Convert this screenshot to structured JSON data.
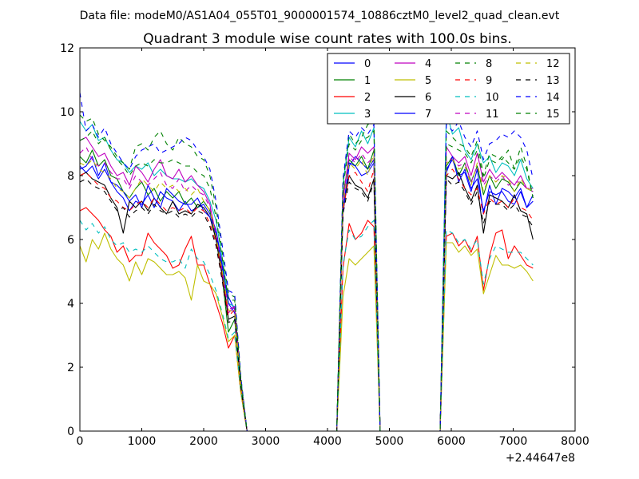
{
  "chart_data": {
    "type": "line",
    "suptitle": "Data file: modeM0/AS1A04_055T01_9000001574_10886cztM0_level2_quad_clean.evt",
    "title": "Quadrant 3 module wise count rates with 100.0s bins.",
    "xlabel": "",
    "ylabel": "",
    "x_offset_label": "+2.44647e8",
    "xlim": [
      0,
      8000
    ],
    "ylim": [
      0,
      12
    ],
    "xticks": [
      0,
      1000,
      2000,
      3000,
      4000,
      5000,
      6000,
      7000,
      8000
    ],
    "yticks": [
      0,
      2,
      4,
      6,
      8,
      10,
      12
    ],
    "legend_position": "top-right",
    "legend_columns": 4,
    "segments": [
      {
        "x": [
          0,
          100,
          200,
          300,
          400,
          500,
          600,
          700,
          800,
          900,
          1000,
          1100,
          1200,
          1300,
          1400,
          1500,
          1600,
          1700,
          1800,
          1900,
          2000,
          2100,
          2200,
          2300,
          2400,
          2500,
          2600,
          2700
        ]
      },
      {
        "x": [
          4150,
          4250,
          4350,
          4450,
          4550,
          4650,
          4750,
          4850,
          4950
        ]
      },
      {
        "x": [
          5820,
          5920,
          6020,
          6120,
          6220,
          6320,
          6420,
          6520,
          6620,
          6720,
          6820,
          6920,
          7020,
          7120,
          7220,
          7320
        ]
      }
    ],
    "zero_gaps": [
      [
        2720,
        4150
      ],
      [
        4950,
        5820
      ]
    ],
    "series": [
      {
        "name": "0",
        "color": "#0000ff",
        "dash": false,
        "values": [
          [
            8.3,
            8.1,
            8.3,
            7.9,
            8.2,
            7.8,
            7.5,
            7.3,
            6.9,
            7.2,
            7.1,
            7.4,
            7.0,
            7.5,
            7.3,
            7.2,
            6.9,
            7.2,
            6.9,
            7.0,
            7.1,
            6.8,
            6.3,
            5.2,
            4.2,
            3.8,
            1.6,
            0
          ],
          [
            0,
            6.8,
            8.3,
            8.6,
            8.4,
            8.2,
            8.5,
            0,
            0
          ],
          [
            0,
            8.2,
            8.5,
            8.0,
            8.1,
            7.5,
            8.2,
            6.8,
            7.7,
            7.1,
            7.6,
            7.5,
            7.3,
            7.6,
            7.0,
            7.4
          ]
        ]
      },
      {
        "name": "1",
        "color": "#008000",
        "dash": false,
        "values": [
          [
            8.6,
            8.4,
            8.8,
            8.3,
            8.5,
            8.0,
            7.9,
            7.5,
            7.3,
            7.6,
            7.8,
            7.4,
            7.6,
            7.2,
            7.5,
            7.3,
            7.5,
            7.1,
            7.3,
            7.0,
            7.2,
            6.9,
            6.0,
            4.8,
            3.1,
            3.5,
            1.4,
            0
          ],
          [
            0,
            7.4,
            8.5,
            8.3,
            8.6,
            8.2,
            8.8,
            0,
            0
          ],
          [
            0,
            8.3,
            8.6,
            8.0,
            8.4,
            7.8,
            8.3,
            7.4,
            8.0,
            7.6,
            7.9,
            7.8,
            7.5,
            7.8,
            7.6,
            7.5
          ]
        ]
      },
      {
        "name": "2",
        "color": "#ff0000",
        "dash": false,
        "values": [
          [
            6.9,
            7.0,
            6.8,
            6.6,
            6.3,
            6.1,
            5.6,
            5.8,
            5.3,
            5.5,
            5.5,
            6.2,
            5.9,
            5.7,
            5.5,
            5.1,
            5.2,
            5.7,
            6.1,
            5.2,
            5.2,
            4.6,
            4.0,
            3.4,
            2.6,
            3.0,
            1.2,
            0
          ],
          [
            0,
            5.1,
            6.5,
            6.0,
            6.2,
            6.6,
            6.4,
            0,
            0
          ],
          [
            0,
            6.1,
            6.2,
            5.8,
            6.0,
            5.6,
            6.1,
            4.4,
            5.5,
            6.2,
            6.3,
            5.4,
            5.8,
            5.5,
            5.2,
            5.1
          ]
        ]
      },
      {
        "name": "3",
        "color": "#00bfbf",
        "dash": false,
        "values": [
          [
            9.7,
            9.4,
            9.6,
            9.1,
            9.2,
            8.8,
            8.5,
            8.4,
            8.1,
            8.3,
            8.2,
            8.4,
            8.0,
            8.2,
            8.0,
            7.9,
            7.9,
            7.8,
            7.9,
            7.7,
            7.6,
            7.2,
            6.6,
            5.4,
            4.0,
            3.9,
            1.6,
            0
          ],
          [
            0,
            7.7,
            9.2,
            8.9,
            9.4,
            9.0,
            9.5,
            0,
            0
          ],
          [
            0,
            10.0,
            9.3,
            9.5,
            8.8,
            8.5,
            9.0,
            8.4,
            8.6,
            8.1,
            8.4,
            8.3,
            8.0,
            8.5,
            7.9,
            7.6
          ]
        ]
      },
      {
        "name": "4",
        "color": "#bf00bf",
        "dash": false,
        "values": [
          [
            9.1,
            9.2,
            8.9,
            8.6,
            8.7,
            8.3,
            8.0,
            8.1,
            7.7,
            8.3,
            8.1,
            7.8,
            8.2,
            8.5,
            8.0,
            7.9,
            8.2,
            7.8,
            8.0,
            7.7,
            7.5,
            7.1,
            6.1,
            4.8,
            3.7,
            3.9,
            1.5,
            0
          ],
          [
            0,
            7.2,
            8.7,
            8.5,
            8.9,
            8.7,
            8.9,
            0,
            0
          ],
          [
            0,
            8.9,
            8.6,
            8.4,
            8.6,
            8.0,
            8.7,
            7.8,
            8.2,
            7.9,
            8.1,
            7.9,
            7.7,
            8.0,
            7.6,
            7.6
          ]
        ]
      },
      {
        "name": "5",
        "color": "#bfbf00",
        "dash": false,
        "values": [
          [
            5.8,
            5.3,
            6.0,
            5.7,
            6.2,
            5.7,
            5.4,
            5.2,
            4.7,
            5.3,
            4.9,
            5.4,
            5.3,
            5.1,
            4.9,
            4.9,
            5.0,
            4.8,
            4.1,
            5.2,
            4.7,
            4.6,
            4.3,
            3.6,
            2.8,
            3.0,
            1.2,
            0
          ],
          [
            0,
            4.2,
            5.4,
            5.2,
            5.4,
            5.6,
            5.8,
            0,
            0
          ],
          [
            0,
            5.9,
            5.9,
            5.6,
            5.8,
            5.5,
            5.7,
            4.3,
            4.9,
            5.5,
            5.2,
            5.2,
            5.1,
            5.2,
            5.0,
            4.7
          ]
        ]
      },
      {
        "name": "6",
        "color": "#000000",
        "dash": false,
        "values": [
          [
            8.0,
            8.1,
            7.9,
            7.8,
            7.7,
            7.3,
            7.0,
            6.2,
            7.2,
            7.0,
            7.2,
            6.9,
            7.3,
            7.0,
            6.8,
            7.2,
            6.8,
            6.9,
            6.8,
            7.1,
            7.0,
            6.7,
            6.0,
            4.9,
            3.5,
            3.6,
            1.4,
            0
          ],
          [
            0,
            7.0,
            8.0,
            7.7,
            7.6,
            7.3,
            7.9,
            0,
            0
          ],
          [
            0,
            8.0,
            7.9,
            8.1,
            7.6,
            7.2,
            7.7,
            6.2,
            7.4,
            7.3,
            7.2,
            7.0,
            7.4,
            6.9,
            6.8,
            6.0
          ]
        ]
      },
      {
        "name": "7",
        "color": "#0000ff",
        "dash": false,
        "values": [
          [
            8.2,
            8.3,
            8.6,
            8.0,
            8.4,
            7.8,
            7.7,
            7.5,
            7.2,
            7.4,
            7.0,
            7.7,
            7.3,
            7.0,
            7.6,
            7.4,
            7.2,
            7.1,
            7.1,
            7.3,
            6.9,
            6.7,
            6.2,
            5.1,
            4.0,
            3.7,
            1.5,
            0
          ],
          [
            0,
            6.9,
            8.4,
            8.3,
            8.0,
            8.1,
            8.4,
            0,
            0
          ],
          [
            0,
            8.1,
            8.6,
            7.8,
            8.2,
            7.6,
            7.9,
            6.9,
            7.5,
            7.4,
            7.5,
            7.2,
            7.1,
            7.5,
            7.0,
            7.2
          ]
        ]
      },
      {
        "name": "8",
        "color": "#008000",
        "dash": true,
        "values": [
          [
            9.9,
            9.7,
            9.8,
            9.3,
            9.1,
            8.9,
            8.6,
            8.4,
            8.2,
            8.9,
            9.0,
            8.8,
            9.2,
            9.4,
            9.0,
            8.8,
            9.2,
            9.0,
            8.9,
            8.6,
            8.5,
            8.0,
            7.0,
            5.6,
            4.3,
            4.2,
            1.7,
            0
          ],
          [
            0,
            7.8,
            9.3,
            9.0,
            9.2,
            9.6,
            9.7,
            0,
            0
          ],
          [
            0,
            9.4,
            9.2,
            9.0,
            8.9,
            8.6,
            9.1,
            8.0,
            8.7,
            8.6,
            8.5,
            8.8,
            8.2,
            8.9,
            8.3,
            7.3
          ]
        ]
      },
      {
        "name": "9",
        "color": "#ff0000",
        "dash": true,
        "values": [
          [
            8.0,
            8.1,
            7.9,
            7.7,
            7.6,
            7.3,
            7.2,
            7.0,
            6.9,
            7.1,
            7.2,
            7.0,
            7.3,
            7.1,
            6.9,
            7.0,
            6.9,
            7.0,
            6.8,
            7.0,
            6.9,
            6.5,
            5.9,
            4.8,
            3.6,
            3.8,
            1.4,
            0
          ],
          [
            0,
            6.9,
            8.0,
            8.1,
            7.8,
            7.5,
            8.2,
            0,
            0
          ],
          [
            0,
            8.0,
            8.2,
            7.9,
            7.6,
            7.4,
            7.6,
            6.8,
            7.3,
            7.1,
            7.2,
            7.0,
            7.3,
            7.0,
            6.9,
            6.6
          ]
        ]
      },
      {
        "name": "10",
        "color": "#00bfbf",
        "dash": true,
        "values": [
          [
            6.6,
            6.3,
            6.5,
            6.2,
            6.4,
            6.0,
            5.8,
            5.9,
            5.6,
            5.7,
            5.6,
            5.8,
            5.6,
            5.4,
            5.3,
            5.3,
            5.4,
            5.1,
            5.7,
            5.4,
            5.3,
            4.9,
            4.4,
            3.7,
            2.9,
            3.1,
            1.3,
            0
          ],
          [
            0,
            5.2,
            6.3,
            6.0,
            6.1,
            6.4,
            6.6,
            0,
            0
          ],
          [
            0,
            6.3,
            6.2,
            5.9,
            6.0,
            5.7,
            6.0,
            4.6,
            5.4,
            5.8,
            5.7,
            5.6,
            5.6,
            5.6,
            5.4,
            5.2
          ]
        ]
      },
      {
        "name": "11",
        "color": "#bf00bf",
        "dash": true,
        "values": [
          [
            8.7,
            8.9,
            8.5,
            8.3,
            8.4,
            8.1,
            7.9,
            7.9,
            7.6,
            8.0,
            7.8,
            7.7,
            7.9,
            8.1,
            7.7,
            7.6,
            7.9,
            7.5,
            7.7,
            7.5,
            7.4,
            7.0,
            6.2,
            5.0,
            3.8,
            3.9,
            1.5,
            0
          ],
          [
            0,
            7.3,
            8.6,
            8.4,
            8.7,
            8.4,
            8.6,
            0,
            0
          ],
          [
            0,
            8.6,
            8.5,
            8.3,
            8.4,
            7.8,
            8.3,
            7.7,
            8.0,
            7.8,
            8.0,
            7.7,
            7.8,
            7.8,
            7.6,
            7.5
          ]
        ]
      },
      {
        "name": "12",
        "color": "#bfbf00",
        "dash": true,
        "values": [
          [
            8.4,
            8.3,
            8.5,
            8.2,
            8.1,
            7.9,
            7.6,
            7.5,
            7.3,
            7.6,
            7.9,
            7.7,
            7.5,
            7.8,
            7.6,
            7.7,
            7.5,
            7.6,
            7.4,
            7.6,
            7.2,
            6.9,
            6.1,
            5.0,
            3.8,
            3.7,
            1.5,
            0
          ],
          [
            0,
            7.1,
            8.4,
            8.2,
            8.5,
            8.0,
            8.7,
            0,
            0
          ],
          [
            0,
            8.4,
            8.5,
            8.2,
            8.3,
            7.7,
            8.4,
            7.5,
            8.0,
            7.8,
            8.0,
            7.9,
            7.5,
            7.9,
            7.6,
            7.5
          ]
        ]
      },
      {
        "name": "13",
        "color": "#000000",
        "dash": true,
        "values": [
          [
            7.8,
            7.9,
            7.7,
            7.6,
            7.5,
            7.2,
            6.9,
            7.0,
            6.7,
            6.9,
            7.0,
            6.8,
            7.1,
            6.9,
            6.8,
            6.9,
            6.7,
            6.8,
            6.7,
            6.9,
            6.8,
            6.4,
            5.8,
            4.7,
            3.4,
            3.5,
            1.4,
            0
          ],
          [
            0,
            6.8,
            7.8,
            7.6,
            7.5,
            7.2,
            7.8,
            0,
            0
          ],
          [
            0,
            7.9,
            7.7,
            7.8,
            7.5,
            7.1,
            7.5,
            6.5,
            7.2,
            7.1,
            7.1,
            6.9,
            7.1,
            6.8,
            6.7,
            6.4
          ]
        ]
      },
      {
        "name": "14",
        "color": "#0000ff",
        "dash": true,
        "values": [
          [
            10.6,
            9.4,
            9.6,
            9.2,
            9.5,
            9.0,
            8.7,
            8.4,
            8.2,
            8.6,
            8.8,
            8.9,
            9.0,
            8.7,
            8.8,
            8.9,
            9.0,
            9.2,
            9.1,
            8.8,
            8.6,
            8.2,
            7.2,
            5.8,
            4.4,
            4.3,
            1.7,
            0
          ],
          [
            0,
            7.9,
            9.4,
            9.2,
            9.5,
            9.3,
            9.6,
            0,
            0
          ],
          [
            0,
            9.6,
            9.4,
            9.7,
            9.2,
            8.9,
            9.4,
            8.5,
            9.0,
            9.1,
            9.3,
            9.2,
            9.4,
            9.2,
            8.8,
            7.9
          ]
        ]
      },
      {
        "name": "15",
        "color": "#008000",
        "dash": true,
        "values": [
          [
            9.1,
            9.2,
            9.4,
            9.0,
            9.2,
            8.8,
            8.5,
            8.3,
            8.0,
            8.3,
            8.4,
            8.3,
            8.5,
            8.4,
            8.4,
            8.5,
            8.4,
            8.3,
            8.3,
            8.1,
            8.0,
            7.6,
            6.7,
            5.4,
            4.1,
            4.1,
            1.6,
            0
          ],
          [
            0,
            7.6,
            9.0,
            8.8,
            9.1,
            9.2,
            9.4,
            0,
            0
          ],
          [
            0,
            9.0,
            8.9,
            8.8,
            8.7,
            8.4,
            8.8,
            7.9,
            8.5,
            8.4,
            8.6,
            8.4,
            8.2,
            8.6,
            8.2,
            7.3
          ]
        ]
      }
    ]
  }
}
